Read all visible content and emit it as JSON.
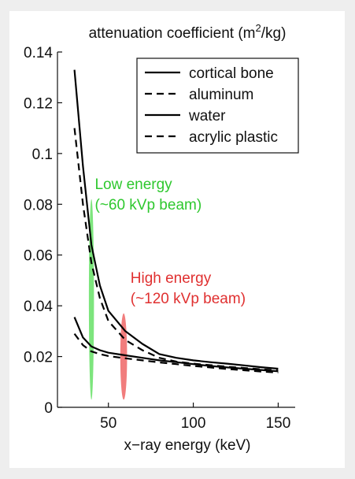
{
  "chart_data": {
    "type": "line",
    "title": "attenuation coefficient (m²/kg)",
    "title_prefix": "attenuation coefficient (m",
    "title_sup": "2",
    "title_suffix": "/kg)",
    "xlabel": "x−ray energy (keV)",
    "ylabel": "",
    "xlim": [
      20,
      160
    ],
    "ylim": [
      0,
      0.14
    ],
    "xticks": [
      50,
      100,
      150
    ],
    "xtick_labels": [
      "50",
      "100",
      "150"
    ],
    "yticks": [
      0,
      0.02,
      0.04,
      0.06,
      0.08,
      0.1,
      0.12,
      0.14
    ],
    "ytick_labels": [
      "0",
      "0.02",
      "0.04",
      "0.06",
      "0.08",
      "0.1",
      "0.12",
      "0.14"
    ],
    "grid": false,
    "legend_position": "top-right",
    "series": [
      {
        "name": "cortical bone",
        "style": "solid",
        "color": "#000000",
        "x": [
          30,
          35,
          40,
          45,
          50,
          60,
          70,
          80,
          90,
          100,
          110,
          120,
          130,
          140,
          150
        ],
        "y": [
          0.133,
          0.095,
          0.064,
          0.048,
          0.038,
          0.03,
          0.025,
          0.021,
          0.0195,
          0.0185,
          0.0178,
          0.0172,
          0.0165,
          0.0158,
          0.0152
        ]
      },
      {
        "name": "aluminum",
        "style": "dashed",
        "color": "#000000",
        "x": [
          30,
          35,
          40,
          45,
          50,
          60,
          70,
          80,
          90,
          100,
          110,
          120,
          130,
          140,
          150
        ],
        "y": [
          0.11,
          0.08,
          0.057,
          0.043,
          0.034,
          0.0265,
          0.0225,
          0.0195,
          0.018,
          0.0172,
          0.0166,
          0.016,
          0.0155,
          0.015,
          0.0145
        ]
      },
      {
        "name": "water",
        "style": "solid",
        "color": "#000000",
        "x": [
          30,
          35,
          40,
          45,
          50,
          60,
          70,
          80,
          90,
          100,
          110,
          120,
          130,
          140,
          150
        ],
        "y": [
          0.0355,
          0.0275,
          0.024,
          0.0225,
          0.0215,
          0.0205,
          0.0195,
          0.0185,
          0.0178,
          0.017,
          0.0163,
          0.0157,
          0.0152,
          0.0147,
          0.0142
        ]
      },
      {
        "name": "acrylic plastic",
        "style": "dashed",
        "color": "#000000",
        "x": [
          30,
          35,
          40,
          45,
          50,
          60,
          70,
          80,
          90,
          100,
          110,
          120,
          130,
          140,
          150
        ],
        "y": [
          0.029,
          0.0245,
          0.022,
          0.021,
          0.0202,
          0.0193,
          0.0185,
          0.0177,
          0.017,
          0.0163,
          0.0157,
          0.0151,
          0.0146,
          0.0141,
          0.0137
        ]
      }
    ],
    "bands": [
      {
        "name": "low-energy-band",
        "center_x": 40,
        "half_width_x": 1.5,
        "y_range": [
          0.003,
          0.082
        ],
        "color": "#66e066",
        "label_lines": [
          "Low energy",
          "(~60 kVp beam)"
        ],
        "label_color": "#2ec82e",
        "label_anchor": {
          "x": 42,
          "y": 0.086
        }
      },
      {
        "name": "high-energy-band",
        "center_x": 59,
        "half_width_x": 2.0,
        "y_range": [
          0.003,
          0.037
        ],
        "color": "#ee6666",
        "label_color": "#e03030",
        "label_lines": [
          "High energy",
          "(~120 kVp beam)"
        ],
        "label_anchor": {
          "x": 63,
          "y": 0.049
        }
      }
    ]
  },
  "colors": {
    "background": "#eeeeee",
    "panel": "#ffffff",
    "axis": "#111111"
  }
}
